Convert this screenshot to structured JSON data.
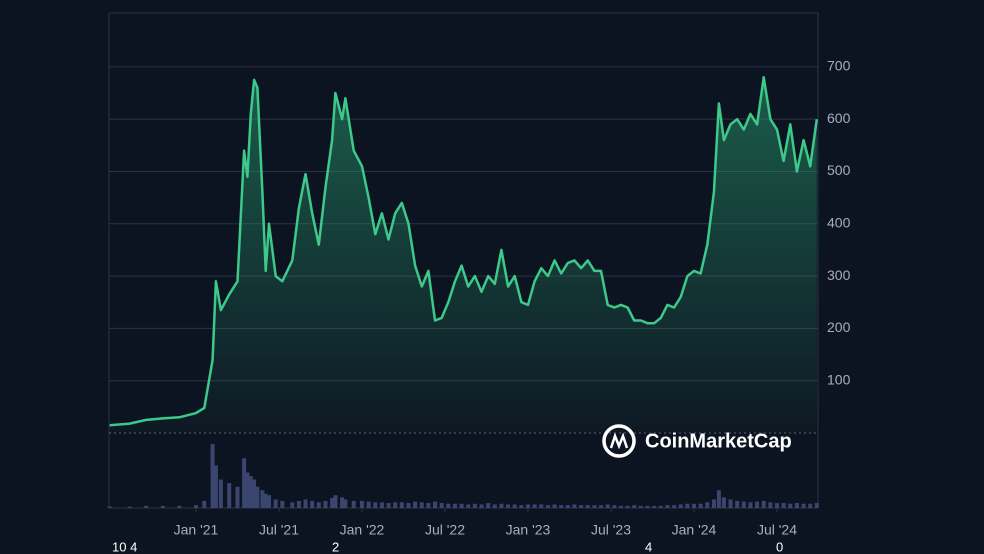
{
  "chart_data": {
    "type": "area-line",
    "color": "#3cc98a",
    "grid": true,
    "watermark": "CoinMarketCap",
    "annotations": [
      "10 4",
      "2",
      "4",
      "0"
    ],
    "x": [
      2020.48,
      2020.6,
      2020.7,
      2020.8,
      2020.9,
      2021.0,
      2021.05,
      2021.1,
      2021.12,
      2021.15,
      2021.2,
      2021.25,
      2021.29,
      2021.31,
      2021.33,
      2021.35,
      2021.37,
      2021.4,
      2021.42,
      2021.44,
      2021.48,
      2021.52,
      2021.58,
      2021.62,
      2021.66,
      2021.7,
      2021.74,
      2021.78,
      2021.82,
      2021.84,
      2021.88,
      2021.9,
      2021.95,
      2022.0,
      2022.04,
      2022.08,
      2022.12,
      2022.16,
      2022.2,
      2022.24,
      2022.28,
      2022.32,
      2022.36,
      2022.4,
      2022.44,
      2022.48,
      2022.52,
      2022.56,
      2022.6,
      2022.64,
      2022.68,
      2022.72,
      2022.76,
      2022.8,
      2022.84,
      2022.88,
      2022.92,
      2022.96,
      2023.0,
      2023.04,
      2023.08,
      2023.12,
      2023.16,
      2023.2,
      2023.24,
      2023.28,
      2023.32,
      2023.36,
      2023.4,
      2023.44,
      2023.48,
      2023.52,
      2023.56,
      2023.6,
      2023.64,
      2023.68,
      2023.72,
      2023.76,
      2023.8,
      2023.84,
      2023.88,
      2023.92,
      2023.96,
      2024.0,
      2024.04,
      2024.08,
      2024.12,
      2024.15,
      2024.18,
      2024.22,
      2024.26,
      2024.3,
      2024.34,
      2024.38,
      2024.42,
      2024.46,
      2024.5,
      2024.54,
      2024.58,
      2024.62,
      2024.66,
      2024.7,
      2024.74
    ],
    "values": [
      15,
      18,
      25,
      28,
      30,
      38,
      48,
      140,
      290,
      235,
      265,
      290,
      540,
      490,
      610,
      675,
      660,
      460,
      310,
      400,
      300,
      290,
      330,
      430,
      495,
      420,
      360,
      470,
      560,
      650,
      600,
      640,
      540,
      510,
      450,
      380,
      420,
      370,
      420,
      440,
      400,
      320,
      280,
      310,
      215,
      220,
      250,
      290,
      320,
      280,
      300,
      270,
      300,
      285,
      350,
      280,
      300,
      250,
      245,
      290,
      315,
      300,
      330,
      305,
      325,
      330,
      315,
      330,
      310,
      310,
      245,
      240,
      245,
      240,
      215,
      215,
      210,
      210,
      220,
      245,
      240,
      260,
      300,
      310,
      305,
      360,
      460,
      630,
      560,
      590,
      600,
      580,
      610,
      590,
      680,
      600,
      580,
      520,
      590,
      500,
      560,
      510,
      600
    ],
    "volume": {
      "color": "#3a4670",
      "ylim": [
        0,
        100
      ],
      "values": [
        2,
        2,
        3,
        3,
        3,
        4,
        10,
        90,
        60,
        40,
        35,
        30,
        70,
        50,
        45,
        40,
        30,
        25,
        20,
        18,
        12,
        10,
        8,
        10,
        12,
        10,
        8,
        10,
        14,
        18,
        15,
        12,
        10,
        10,
        9,
        8,
        8,
        7,
        8,
        8,
        7,
        9,
        8,
        7,
        9,
        7,
        6,
        6,
        6,
        5,
        6,
        5,
        7,
        5,
        6,
        5,
        5,
        4,
        5,
        5,
        5,
        4,
        5,
        4,
        4,
        5,
        4,
        4,
        4,
        4,
        5,
        4,
        3,
        3,
        4,
        3,
        3,
        3,
        3,
        4,
        4,
        5,
        6,
        6,
        6,
        8,
        12,
        25,
        15,
        12,
        10,
        9,
        8,
        9,
        10,
        8,
        7,
        7,
        6,
        7,
        6,
        6,
        7
      ]
    },
    "xlim": [
      2020.476,
      2024.747
    ],
    "xticks": [
      {
        "value": 2021,
        "label": "Jan '21"
      },
      {
        "value": 2021.5,
        "label": "Jul '21"
      },
      {
        "value": 2022,
        "label": "Jan '22"
      },
      {
        "value": 2022.5,
        "label": "Jul '22"
      },
      {
        "value": 2023,
        "label": "Jan '23"
      },
      {
        "value": 2023.5,
        "label": "Jul '23"
      },
      {
        "value": 2024,
        "label": "Jan '24"
      },
      {
        "value": 2024.5,
        "label": "Jul '24"
      }
    ],
    "ylim": [
      0,
      803
    ],
    "yticks": [
      100,
      200,
      300,
      400,
      500,
      600,
      700
    ]
  }
}
